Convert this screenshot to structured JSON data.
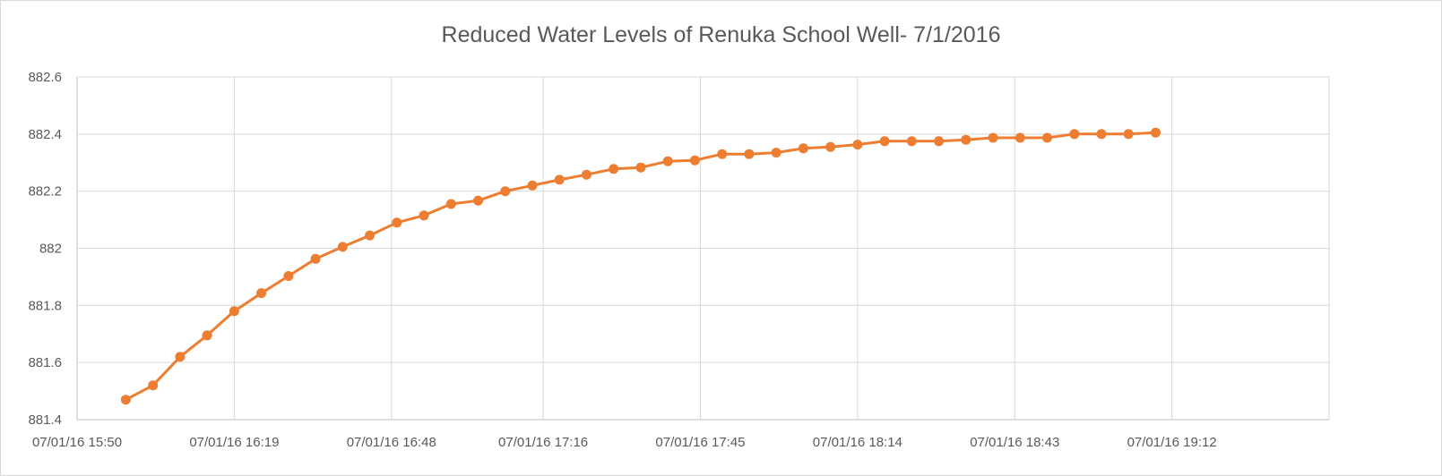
{
  "chart_data": {
    "type": "line",
    "title": "Reduced Water Levels of Renuka School Well- 7/1/2016",
    "xlabel": "",
    "ylabel": "",
    "ylim": [
      881.4,
      882.6
    ],
    "yticks": [
      "881.4",
      "881.6",
      "881.8",
      "882",
      "882.2",
      "882.4",
      "882.6"
    ],
    "xlim": [
      "07/01/16 15:50",
      "07/01/16 19:41"
    ],
    "xticks": [
      "07/01/16 15:50",
      "07/01/16 16:19",
      "07/01/16 16:48",
      "07/01/16 17:16",
      "07/01/16 17:45",
      "07/01/16 18:14",
      "07/01/16 18:43",
      "07/01/16 19:12"
    ],
    "grid": true,
    "legend": "none",
    "color": "#ED7D31",
    "series": [
      {
        "x": [
          "07/01/16 15:59",
          "07/01/16 16:04",
          "07/01/16 16:09",
          "07/01/16 16:14",
          "07/01/16 16:19",
          "07/01/16 16:24",
          "07/01/16 16:29",
          "07/01/16 16:34",
          "07/01/16 16:39",
          "07/01/16 16:44",
          "07/01/16 16:49",
          "07/01/16 16:54",
          "07/01/16 16:59",
          "07/01/16 17:04",
          "07/01/16 17:09",
          "07/01/16 17:14",
          "07/01/16 17:19",
          "07/01/16 17:24",
          "07/01/16 17:29",
          "07/01/16 17:34",
          "07/01/16 17:39",
          "07/01/16 17:44",
          "07/01/16 17:49",
          "07/01/16 17:54",
          "07/01/16 17:59",
          "07/01/16 18:04",
          "07/01/16 18:09",
          "07/01/16 18:14",
          "07/01/16 18:19",
          "07/01/16 18:24",
          "07/01/16 18:29",
          "07/01/16 18:34",
          "07/01/16 18:39",
          "07/01/16 18:44",
          "07/01/16 18:49",
          "07/01/16 18:54",
          "07/01/16 18:59",
          "07/01/16 19:04",
          "07/01/16 19:09"
        ],
        "values": [
          881.47,
          881.52,
          881.62,
          881.695,
          881.78,
          881.843,
          881.903,
          881.963,
          882.005,
          882.045,
          882.09,
          882.115,
          882.155,
          882.167,
          882.2,
          882.22,
          882.24,
          882.258,
          882.278,
          882.283,
          882.305,
          882.308,
          882.33,
          882.33,
          882.335,
          882.35,
          882.355,
          882.363,
          882.375,
          882.375,
          882.375,
          882.38,
          882.387,
          882.387,
          882.387,
          882.4,
          882.4,
          882.4,
          882.405
        ]
      }
    ]
  }
}
